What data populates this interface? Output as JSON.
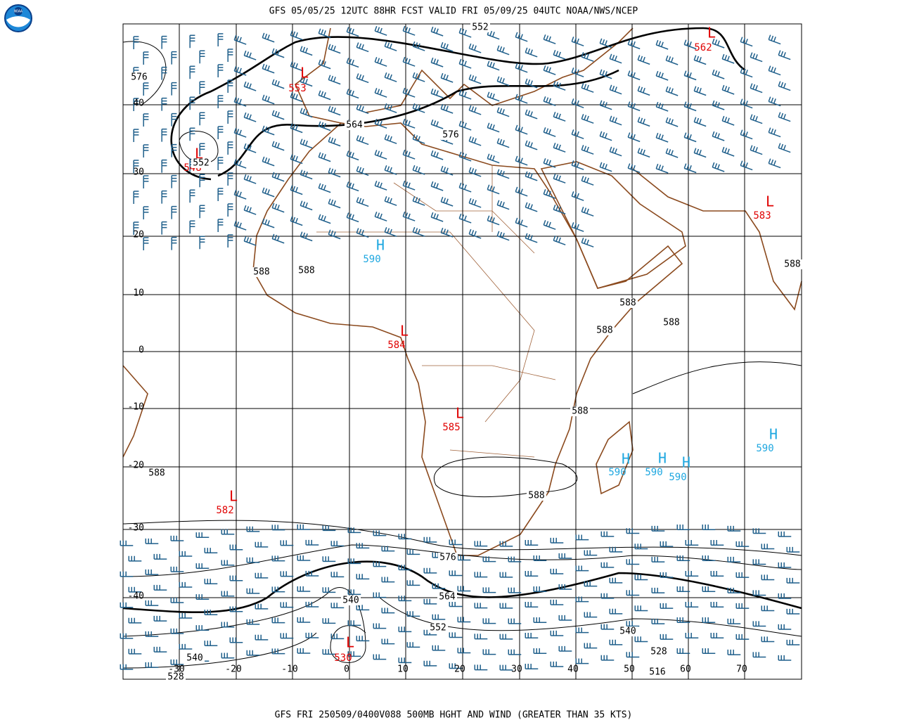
{
  "header": {
    "title": "GFS 05/05/25 12UTC 88HR FCST VALID FRI 05/09/25 04UTC NOAA/NWS/NCEP",
    "logo_text": "NOAA"
  },
  "footer": "GFS FRI 250509/0400V088 500MB HGHT AND WIND (GREATER THAN 35 KTS)",
  "map": {
    "lat_labels": [
      "40",
      "30",
      "20",
      "10",
      "0",
      "-10",
      "-20",
      "-30",
      "-40"
    ],
    "lon_labels": [
      "-30",
      "-20",
      "-10",
      "0",
      "10",
      "20",
      "30",
      "40",
      "50",
      "60",
      "70"
    ],
    "centers": [
      {
        "letter": "L",
        "value": "553"
      },
      {
        "letter": "L",
        "value": "548"
      },
      {
        "letter": "L",
        "value": "562"
      },
      {
        "letter": "L",
        "value": "583"
      },
      {
        "letter": "H",
        "value": "590"
      },
      {
        "letter": "L",
        "value": "584"
      },
      {
        "letter": "L",
        "value": "585"
      },
      {
        "letter": "L",
        "value": "582"
      },
      {
        "letter": "L",
        "value": "530"
      },
      {
        "letter": "H",
        "value": "590"
      },
      {
        "letter": "H",
        "value": "590"
      },
      {
        "letter": "H",
        "value": "590"
      },
      {
        "letter": "H",
        "value": "590"
      }
    ],
    "contour_labels": [
      "552",
      "576",
      "552",
      "564",
      "576",
      "588",
      "588",
      "588",
      "588",
      "588",
      "588",
      "588",
      "588",
      "588",
      "576",
      "564",
      "540",
      "552",
      "540",
      "528",
      "516",
      "540",
      "528"
    ]
  }
}
